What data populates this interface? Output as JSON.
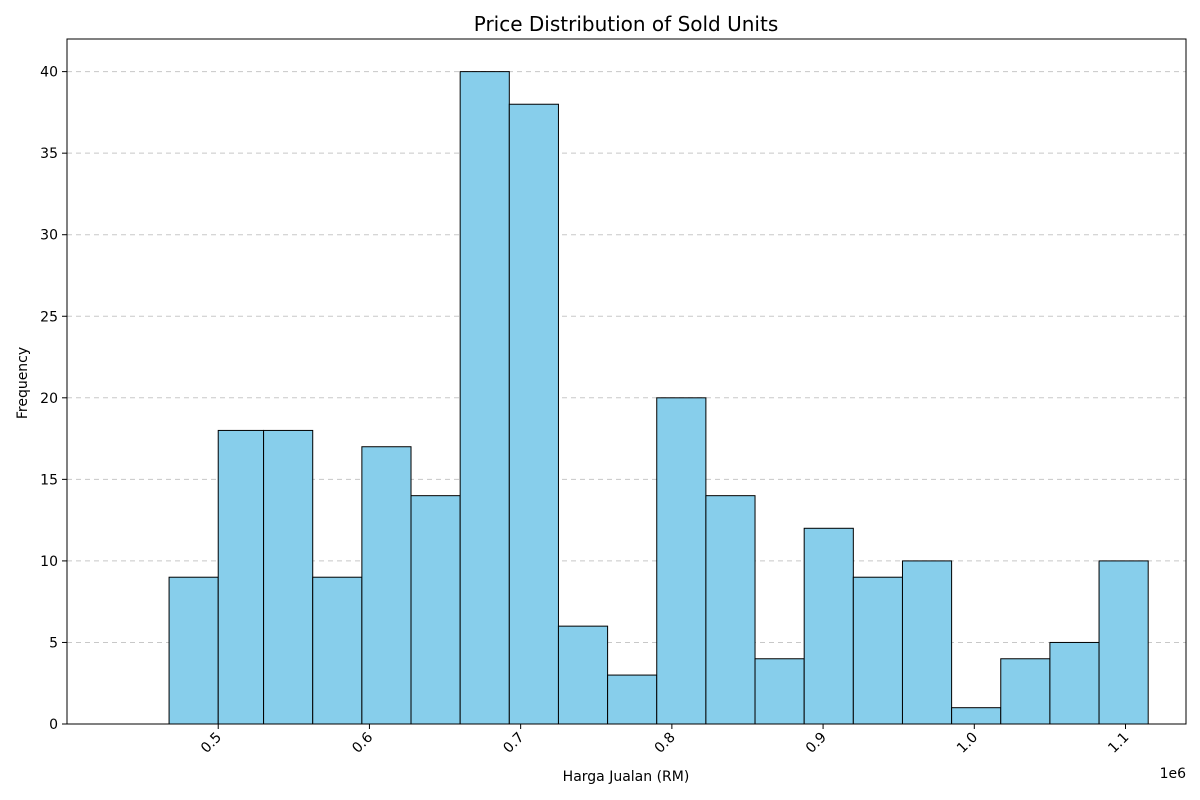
{
  "chart_data": {
    "type": "bar",
    "title": "Price Distribution of Sold Units",
    "xlabel": "Harga Jualan (RM)",
    "ylabel": "Frequency",
    "x_offset_label": "1e6",
    "bin_edges": [
      0.4675,
      0.5,
      0.53,
      0.5625,
      0.595,
      0.6275,
      0.66,
      0.6925,
      0.725,
      0.7575,
      0.79,
      0.8225,
      0.855,
      0.8875,
      0.92,
      0.9525,
      0.985,
      1.0175,
      1.05,
      1.0825,
      1.115
    ],
    "values": [
      9,
      18,
      18,
      9,
      17,
      14,
      40,
      38,
      6,
      3,
      20,
      14,
      4,
      12,
      9,
      10,
      1,
      4,
      5,
      10
    ],
    "xlim": [
      0.4,
      1.14
    ],
    "ylim": [
      0,
      42
    ],
    "x_ticks": [
      0.5,
      0.6,
      0.7,
      0.8,
      0.9,
      1.0,
      1.1
    ],
    "x_tick_labels": [
      "0.5",
      "0.6",
      "0.7",
      "0.8",
      "0.9",
      "1.0",
      "1.1"
    ],
    "y_ticks": [
      0,
      5,
      10,
      15,
      20,
      25,
      30,
      35,
      40
    ],
    "y_tick_labels": [
      "0",
      "5",
      "10",
      "15",
      "20",
      "25",
      "30",
      "35",
      "40"
    ],
    "grid": "y-dashed",
    "bar_color": "#87CEEB",
    "edge_color": "#000000"
  }
}
